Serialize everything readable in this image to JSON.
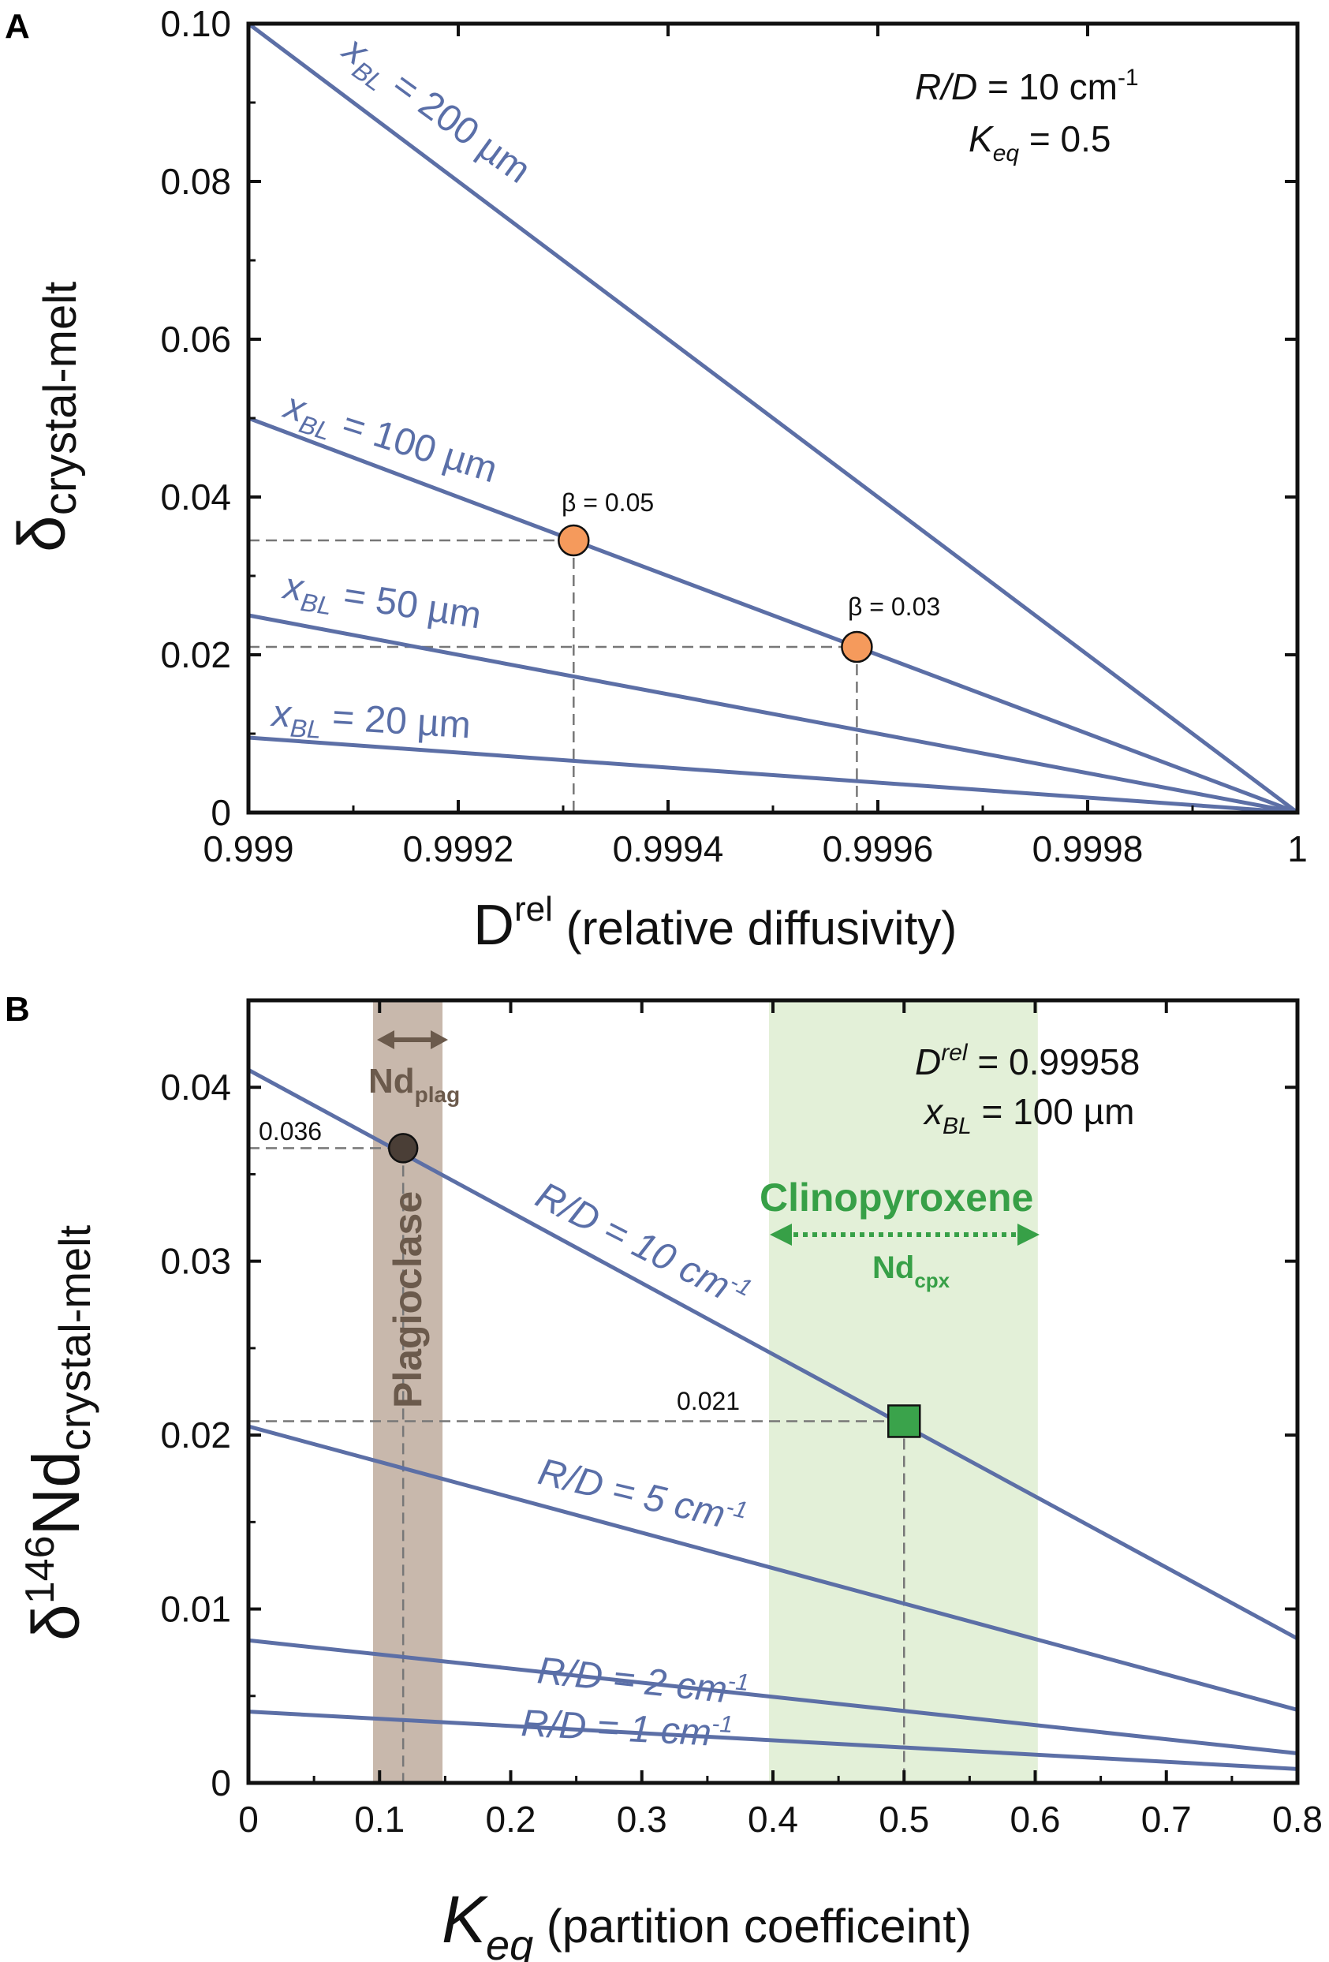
{
  "colors": {
    "line": "#5c6fa6",
    "orange": "#f59a5c",
    "green": "#3aa34b",
    "plag_band": "#c8b8ac",
    "cpx_band": "#e3f0d8",
    "plag_arrow": "#6b5a4c",
    "cpx_text": "#37a047"
  },
  "chart_data": [
    {
      "panel": "A",
      "type": "line",
      "xlabel_main": "D",
      "xlabel_sup": "rel",
      "xlabel_rest": " (relative diffusivity)",
      "ylabel_main": "δ",
      "ylabel_sub": "crystal-melt",
      "xlim": [
        0.999,
        1.0
      ],
      "ylim": [
        0,
        0.1
      ],
      "xticks": [
        0.999,
        0.9992,
        0.9994,
        0.9996,
        0.9998,
        1.0
      ],
      "xtick_labels": [
        "0.999",
        "0.9992",
        "0.9994",
        "0.9996",
        "0.9998",
        "1"
      ],
      "yticks": [
        0,
        0.02,
        0.04,
        0.06,
        0.08,
        0.1
      ],
      "ytick_labels": [
        "0",
        "0.02",
        "0.04",
        "0.06",
        "0.08",
        "0.10"
      ],
      "params": {
        "rd": "R/D = 10 cm-1",
        "keq": "Keq = 0.5"
      },
      "series": [
        {
          "name": "xBL = 200 µm",
          "label_prefix": "x",
          "label_sub": "BL",
          "label_rest": " = 200 µm",
          "x": [
            0.999,
            1.0
          ],
          "y": [
            0.1,
            0.0
          ]
        },
        {
          "name": "xBL = 100 µm",
          "label_prefix": "x",
          "label_sub": "BL",
          "label_rest": " = 100 µm",
          "x": [
            0.999,
            1.0
          ],
          "y": [
            0.05,
            0.0
          ]
        },
        {
          "name": "xBL = 50 µm",
          "label_prefix": "x",
          "label_sub": "BL",
          "label_rest": " = 50 µm",
          "x": [
            0.999,
            1.0
          ],
          "y": [
            0.025,
            0.0
          ]
        },
        {
          "name": "xBL = 20 µm",
          "label_prefix": "x",
          "label_sub": "BL",
          "label_rest": " = 20 µm",
          "x": [
            0.999,
            1.0
          ],
          "y": [
            0.0095,
            0.0
          ]
        }
      ],
      "points": [
        {
          "label": "β = 0.05",
          "x": 0.99931,
          "y": 0.0345
        },
        {
          "label": "β = 0.03",
          "x": 0.99958,
          "y": 0.021
        }
      ]
    },
    {
      "panel": "B",
      "type": "line",
      "xlabel_main": "K",
      "xlabel_sub": "eq",
      "xlabel_rest": " (partition coefficeint)",
      "ylabel_main": "δ",
      "ylabel_sup": "146",
      "ylabel_nd": "Nd",
      "ylabel_sub": "crystal-melt",
      "xlim": [
        0,
        0.8
      ],
      "ylim": [
        0,
        0.045
      ],
      "xticks": [
        0,
        0.1,
        0.2,
        0.3,
        0.4,
        0.5,
        0.6,
        0.7,
        0.8
      ],
      "xtick_labels": [
        "0",
        "0.1",
        "0.2",
        "0.3",
        "0.4",
        "0.5",
        "0.6",
        "0.7",
        "0.8"
      ],
      "yticks": [
        0,
        0.01,
        0.02,
        0.03,
        0.04
      ],
      "ytick_labels": [
        "0",
        "0.01",
        "0.02",
        "0.03",
        "0.04"
      ],
      "params": {
        "drel": "Drel = 0.99958",
        "xbl": "xBL = 100 µm"
      },
      "series": [
        {
          "name": "R/D = 10 cm-1",
          "label_main": "R/D = 10 cm",
          "label_sup": "-1",
          "x": [
            0,
            0.8
          ],
          "y": [
            0.041,
            0.0083
          ]
        },
        {
          "name": "R/D = 5 cm-1",
          "label_main": "R/D = 5 cm",
          "label_sup": "-1",
          "x": [
            0,
            0.8
          ],
          "y": [
            0.0205,
            0.0042
          ]
        },
        {
          "name": "R/D = 2 cm-1",
          "label_main": "R/D = 2 cm",
          "label_sup": "-1",
          "x": [
            0,
            0.8
          ],
          "y": [
            0.0082,
            0.0017
          ]
        },
        {
          "name": "R/D = 1 cm-1",
          "label_main": "R/D = 1 cm",
          "label_sup": "-1",
          "x": [
            0,
            0.8
          ],
          "y": [
            0.0041,
            0.0008
          ]
        }
      ],
      "bands": [
        {
          "name": "Plagioclase",
          "x0": 0.095,
          "x1": 0.148,
          "label": "Plagioclase",
          "nd_main": "Nd",
          "nd_sub": "plag"
        },
        {
          "name": "Clinopyroxene",
          "x0": 0.397,
          "x1": 0.602,
          "label": "Clinopyroxene",
          "nd_main": "Nd",
          "nd_sub": "cpx"
        }
      ],
      "points": [
        {
          "label": "0.036",
          "x": 0.118,
          "y": 0.0365,
          "marker": "circle"
        },
        {
          "label": "0.021",
          "x": 0.5,
          "y": 0.0208,
          "marker": "square"
        }
      ]
    }
  ]
}
